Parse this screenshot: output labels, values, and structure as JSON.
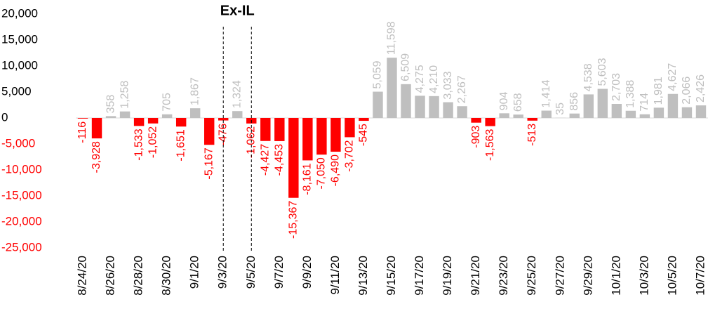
{
  "chart_data": {
    "type": "bar",
    "categories": [
      "8/24/20",
      null,
      "8/26/20",
      null,
      "8/28/20",
      null,
      "8/30/20",
      null,
      "9/1/20",
      null,
      "9/3/20",
      null,
      "9/5/20",
      null,
      "9/7/20",
      null,
      "9/9/20",
      null,
      "9/11/20",
      null,
      "9/13/20",
      null,
      "9/15/20",
      null,
      "9/17/20",
      null,
      "9/19/20",
      null,
      "9/21/20",
      null,
      "9/23/20",
      null,
      "9/25/20",
      null,
      "9/27/20",
      null,
      "9/29/20",
      null,
      "10/1/20",
      null,
      "10/3/20",
      null,
      "10/5/20",
      null,
      "10/7/20"
    ],
    "values": [
      -116,
      -3928,
      358,
      1258,
      -1533,
      -1052,
      705,
      -1651,
      1867,
      -5167,
      -476,
      1324,
      -1062,
      -4427,
      -4453,
      -15367,
      -8161,
      -7050,
      -6490,
      -3702,
      -545,
      5059,
      11598,
      6509,
      4275,
      4210,
      3033,
      2267,
      -903,
      -1563,
      904,
      658,
      -513,
      1414,
      35,
      856,
      4538,
      5603,
      2703,
      1388,
      714,
      1981,
      4627,
      2066,
      2426
    ],
    "value_labels": [
      "-116",
      "-3,928",
      "358",
      "1,258",
      "-1,533",
      "-1,052",
      "705",
      "-1,651",
      "1,867",
      "-5,167",
      "-476",
      "1,324",
      "-1,062",
      "-4,427",
      "-4,453",
      "-15,367",
      "-8,161",
      "-7,050",
      "-6,490",
      "-3,702",
      "-545",
      "5,059",
      "11,598",
      "6,509",
      "4,275",
      "4,210",
      "3,033",
      "2,267",
      "-903",
      "-1,563",
      "904",
      "658",
      "-513",
      "1,414",
      "35",
      "856",
      "4,538",
      "5,603",
      "2,703",
      "1,388",
      "714",
      "1,981",
      "4,627",
      "2,066",
      "2,426"
    ],
    "positive_color": "#bfbfbf",
    "negative_color": "#ff0000",
    "ylim": [
      -25000,
      20000
    ],
    "yticks": [
      {
        "value": -25000,
        "label": "-25,000"
      },
      {
        "value": -20000,
        "label": "-20,000"
      },
      {
        "value": -15000,
        "label": "-15,000"
      },
      {
        "value": -10000,
        "label": "-10,000"
      },
      {
        "value": -5000,
        "label": "-5,000"
      },
      0,
      {
        "value": 5000,
        "label": "5,000"
      },
      {
        "value": 10000,
        "label": "10,000"
      },
      {
        "value": 15000,
        "label": "15,000"
      },
      {
        "value": 20000,
        "label": "20,000"
      }
    ],
    "grid": false,
    "annotation": {
      "text": "Ex-IL",
      "span": [
        "9/3/20",
        "9/5/20"
      ]
    }
  }
}
